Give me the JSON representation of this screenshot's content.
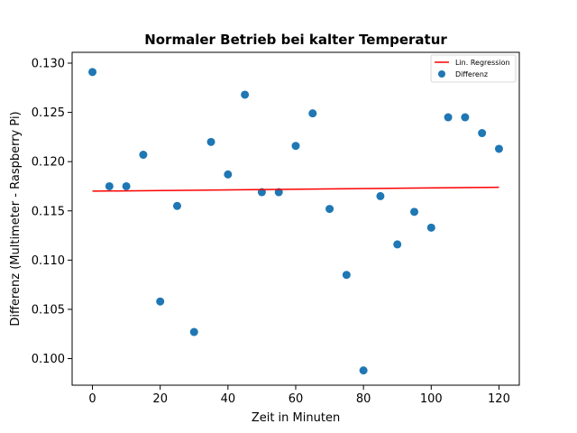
{
  "chart_data": {
    "type": "scatter",
    "title": "Normaler Betrieb bei kalter Temperatur",
    "xlabel": "Zeit in Minuten",
    "ylabel": "Differenz (Multimeter - Raspberry Pi)",
    "xlim": [
      -6,
      126
    ],
    "ylim": [
      0.0973,
      0.1311
    ],
    "xticks": [
      0,
      20,
      40,
      60,
      80,
      100,
      120
    ],
    "yticks": [
      0.1,
      0.105,
      0.11,
      0.115,
      0.12,
      0.125,
      0.13
    ],
    "ytick_labels": [
      "0.100",
      "0.105",
      "0.110",
      "0.115",
      "0.120",
      "0.125",
      "0.130"
    ],
    "grid": false,
    "legend_position": "top-right",
    "series": [
      {
        "name": "Differenz",
        "kind": "scatter",
        "color": "#1f77b4",
        "x": [
          0,
          5,
          10,
          15,
          20,
          25,
          30,
          35,
          40,
          45,
          50,
          55,
          60,
          65,
          70,
          75,
          80,
          85,
          90,
          95,
          100,
          105,
          110,
          115,
          120
        ],
        "y": [
          0.1291,
          0.1175,
          0.1175,
          0.1207,
          0.1058,
          0.1155,
          0.1027,
          0.122,
          0.1187,
          0.1268,
          0.1169,
          0.1169,
          0.1216,
          0.1249,
          0.1152,
          0.1085,
          0.0988,
          0.1165,
          0.1116,
          0.1149,
          0.1133,
          0.1245,
          0.1245,
          0.1229,
          0.1213
        ]
      },
      {
        "name": "Lin. Regression",
        "kind": "line",
        "color": "#ff0000",
        "x": [
          0,
          120
        ],
        "y": [
          0.117,
          0.1174
        ]
      }
    ]
  }
}
